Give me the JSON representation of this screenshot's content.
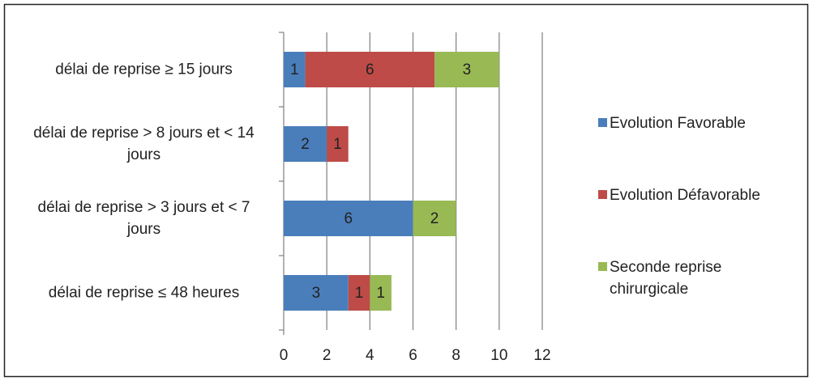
{
  "chart_data": {
    "type": "stacked_barh",
    "categories": [
      "délai de reprise ≥ 15 jours",
      "délai de reprise > 8 jours et < 14 jours",
      "délai de reprise > 3 jours et < 7 jours",
      "délai de reprise ≤ 48 heures"
    ],
    "series": [
      {
        "name": "Evolution Favorable",
        "color": "#4a7ebb",
        "values": [
          1,
          2,
          6,
          3
        ]
      },
      {
        "name": "Evolution Défavorable",
        "color": "#be4b48",
        "values": [
          6,
          1,
          null,
          1
        ]
      },
      {
        "name": "Seconde reprise chirurgicale",
        "color": "#98b954",
        "values": [
          3,
          null,
          2,
          1
        ]
      }
    ],
    "xlim": [
      0,
      12
    ],
    "xticks": [
      0,
      2,
      4,
      6,
      8,
      10,
      12
    ],
    "grid": true,
    "legend": "right"
  }
}
